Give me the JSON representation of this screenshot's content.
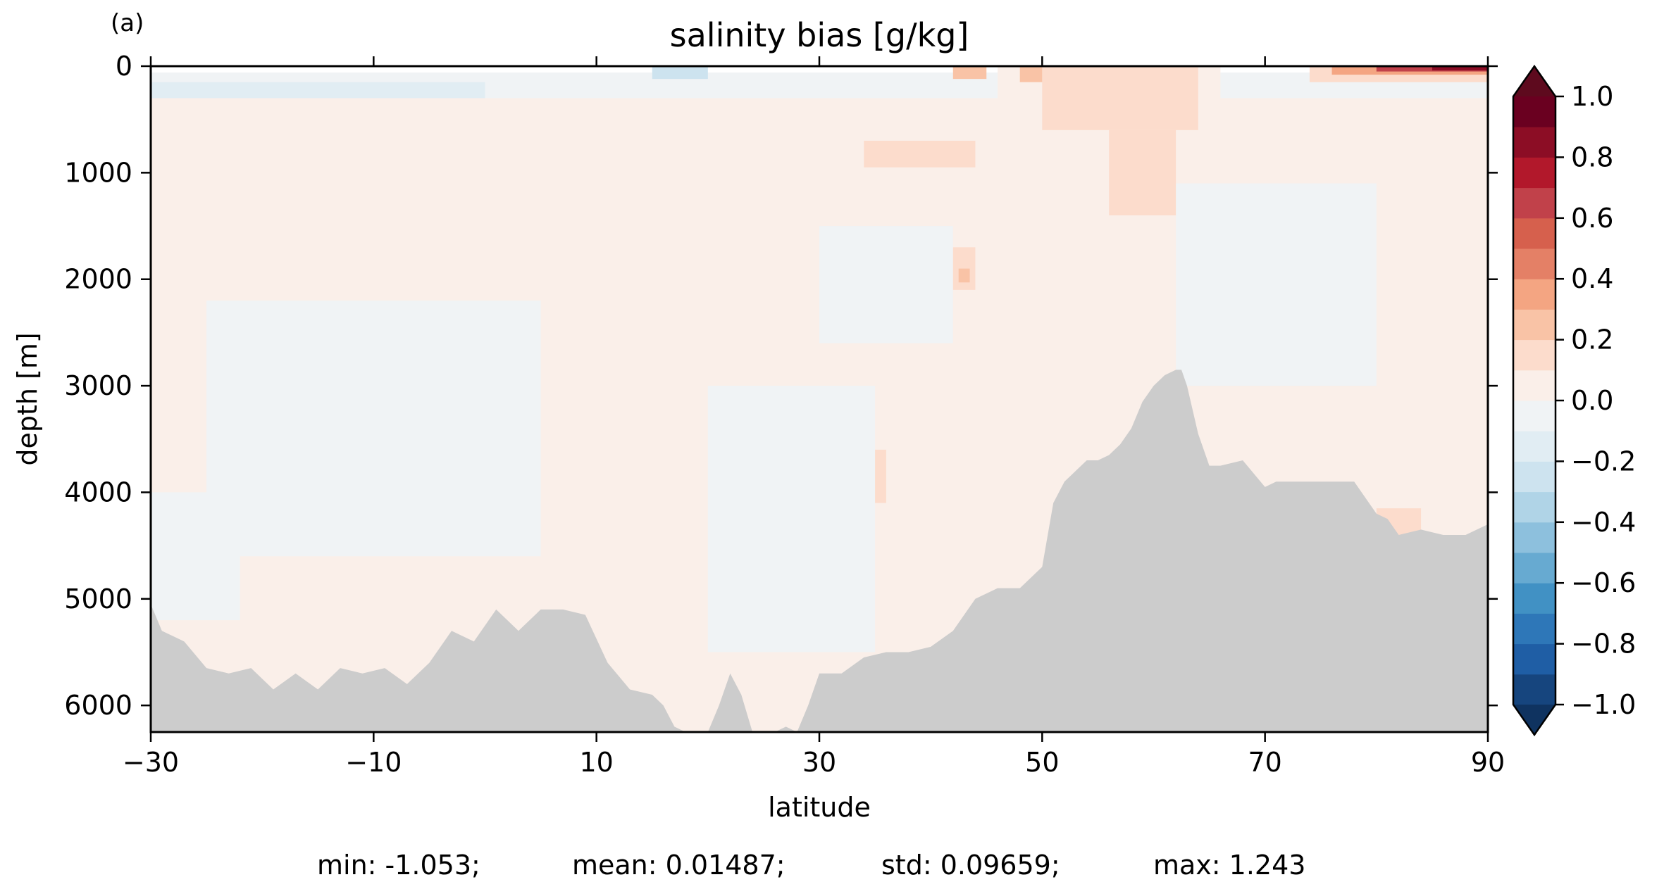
{
  "panel_label": "(a)",
  "chart_data": {
    "type": "heatmap",
    "title": "salinity bias [g/kg]",
    "xlabel": "latitude",
    "ylabel": "depth [m]",
    "xlim": [
      -30,
      90
    ],
    "ylim": [
      6250,
      0
    ],
    "x_ticks": [
      -30,
      -10,
      10,
      30,
      50,
      70,
      90
    ],
    "x_tick_labels": [
      "−30",
      "−10",
      "10",
      "30",
      "50",
      "70",
      "90"
    ],
    "y_ticks": [
      0,
      1000,
      2000,
      3000,
      4000,
      5000,
      6000
    ],
    "y_tick_labels": [
      "0",
      "1000",
      "2000",
      "3000",
      "4000",
      "5000",
      "6000"
    ],
    "colorbar": {
      "vmin": -1.0,
      "vmax": 1.0,
      "levels": [
        -1.0,
        -0.9,
        -0.8,
        -0.7,
        -0.6,
        -0.5,
        -0.4,
        -0.3,
        -0.2,
        -0.1,
        0.0,
        0.1,
        0.2,
        0.3,
        0.4,
        0.5,
        0.6,
        0.7,
        0.8,
        0.9,
        1.0
      ],
      "colors": [
        "#16457e",
        "#1f5ea5",
        "#2e77b8",
        "#4191c4",
        "#67aad1",
        "#8dc0dd",
        "#b0d4e7",
        "#cde3ef",
        "#e1edf3",
        "#f0f3f5",
        "#faefe9",
        "#fcdccc",
        "#f9c3a6",
        "#f4a582",
        "#e48066",
        "#d6604d",
        "#c1414a",
        "#b2182b",
        "#8c0d25",
        "#6a0020"
      ],
      "under_color": "#0f3360",
      "over_color": "#5e0a1e",
      "ticks": [
        1.0,
        0.8,
        0.6,
        0.4,
        0.2,
        0.0,
        -0.2,
        -0.4,
        -0.6,
        -0.8,
        -1.0
      ],
      "tick_labels": [
        "1.0",
        "0.8",
        "0.6",
        "0.4",
        "0.2",
        "0.0",
        "−0.2",
        "−0.4",
        "−0.6",
        "−0.8",
        "−1.0"
      ]
    },
    "land_color": "#cccccc",
    "bottom_topography": {
      "lat": [
        -30,
        -29,
        -27,
        -25,
        -23,
        -21,
        -19,
        -17,
        -15,
        -13,
        -11,
        -9,
        -7,
        -5,
        -3,
        -1,
        1,
        3,
        5,
        7,
        9,
        11,
        13,
        15,
        16,
        17,
        18,
        19,
        20,
        21,
        22,
        23,
        24,
        25,
        26,
        27,
        28,
        29,
        30,
        32,
        34,
        36,
        38,
        40,
        42,
        44,
        46,
        48,
        50,
        51,
        52,
        53,
        54,
        55,
        56,
        57,
        58,
        59,
        60,
        61,
        62,
        62.5,
        63,
        64,
        65,
        66,
        68,
        70,
        71,
        72,
        74,
        76,
        78,
        80,
        81,
        82,
        84,
        86,
        88,
        90
      ],
      "depth": [
        5050,
        5300,
        5400,
        5650,
        5700,
        5650,
        5850,
        5700,
        5850,
        5650,
        5700,
        5650,
        5800,
        5600,
        5300,
        5400,
        5100,
        5300,
        5100,
        5100,
        5150,
        5600,
        5850,
        5900,
        6000,
        6200,
        6250,
        6250,
        6250,
        6000,
        5700,
        5900,
        6250,
        6250,
        6250,
        6200,
        6250,
        6000,
        5700,
        5700,
        5550,
        5500,
        5500,
        5450,
        5300,
        5000,
        4900,
        4900,
        4700,
        4100,
        3900,
        3800,
        3700,
        3700,
        3650,
        3550,
        3400,
        3150,
        3000,
        2900,
        2850,
        2850,
        3000,
        3450,
        3750,
        3750,
        3700,
        3950,
        3900,
        3900,
        3900,
        3900,
        3900,
        4200,
        4250,
        4400,
        4350,
        4400,
        4400,
        4300
      ]
    },
    "regions": [
      {
        "value": -0.05,
        "lat": [
          -30,
          90
        ],
        "depth": [
          60,
          6250
        ]
      },
      {
        "value": 0.05,
        "lat": [
          -30,
          90
        ],
        "depth": [
          300,
          3000
        ]
      },
      {
        "value": 0.05,
        "lat": [
          -30,
          90
        ],
        "depth": [
          3000,
          6250
        ]
      },
      {
        "value": 0.05,
        "lat": [
          46,
          66
        ],
        "depth": [
          0,
          1600
        ]
      },
      {
        "value": -0.05,
        "lat": [
          -25,
          5
        ],
        "depth": [
          2200,
          4600
        ]
      },
      {
        "value": -0.05,
        "lat": [
          20,
          35
        ],
        "depth": [
          3000,
          5500
        ]
      },
      {
        "value": -0.05,
        "lat": [
          62,
          80
        ],
        "depth": [
          1100,
          3000
        ]
      },
      {
        "value": -0.05,
        "lat": [
          -30,
          -22
        ],
        "depth": [
          4000,
          5200
        ]
      },
      {
        "value": -0.05,
        "lat": [
          30,
          42
        ],
        "depth": [
          1500,
          2600
        ]
      },
      {
        "value": 0.15,
        "lat": [
          50,
          64
        ],
        "depth": [
          0,
          600
        ]
      },
      {
        "value": 0.15,
        "lat": [
          56,
          62
        ],
        "depth": [
          600,
          1400
        ]
      },
      {
        "value": 0.15,
        "lat": [
          34,
          44
        ],
        "depth": [
          700,
          950
        ]
      },
      {
        "value": 0.15,
        "lat": [
          42,
          44
        ],
        "depth": [
          1700,
          2100
        ]
      },
      {
        "value": 0.25,
        "lat": [
          42.5,
          43.5
        ],
        "depth": [
          1900,
          2030
        ]
      },
      {
        "value": 0.15,
        "lat": [
          35,
          36
        ],
        "depth": [
          3600,
          4100
        ]
      },
      {
        "value": -0.15,
        "lat": [
          -30,
          0
        ],
        "depth": [
          150,
          300
        ]
      },
      {
        "value": 0.15,
        "lat": [
          80,
          84
        ],
        "depth": [
          4150,
          4500
        ]
      },
      {
        "value": 0.15,
        "lat": [
          74,
          90
        ],
        "depth": [
          0,
          150
        ]
      },
      {
        "value": 0.35,
        "lat": [
          76,
          90
        ],
        "depth": [
          0,
          80
        ]
      },
      {
        "value": 0.65,
        "lat": [
          80,
          90
        ],
        "depth": [
          0,
          50
        ]
      },
      {
        "value": 0.85,
        "lat": [
          85,
          90
        ],
        "depth": [
          0,
          40
        ]
      },
      {
        "value": 0.25,
        "lat": [
          42,
          45
        ],
        "depth": [
          0,
          120
        ]
      },
      {
        "value": 0.25,
        "lat": [
          48,
          50
        ],
        "depth": [
          0,
          150
        ]
      },
      {
        "value": -0.25,
        "lat": [
          15,
          20
        ],
        "depth": [
          0,
          120
        ]
      }
    ]
  },
  "stats": {
    "min": "min: -1.053;",
    "mean": "mean: 0.01487;",
    "std": "std: 0.09659;",
    "max": "max: 1.243"
  }
}
